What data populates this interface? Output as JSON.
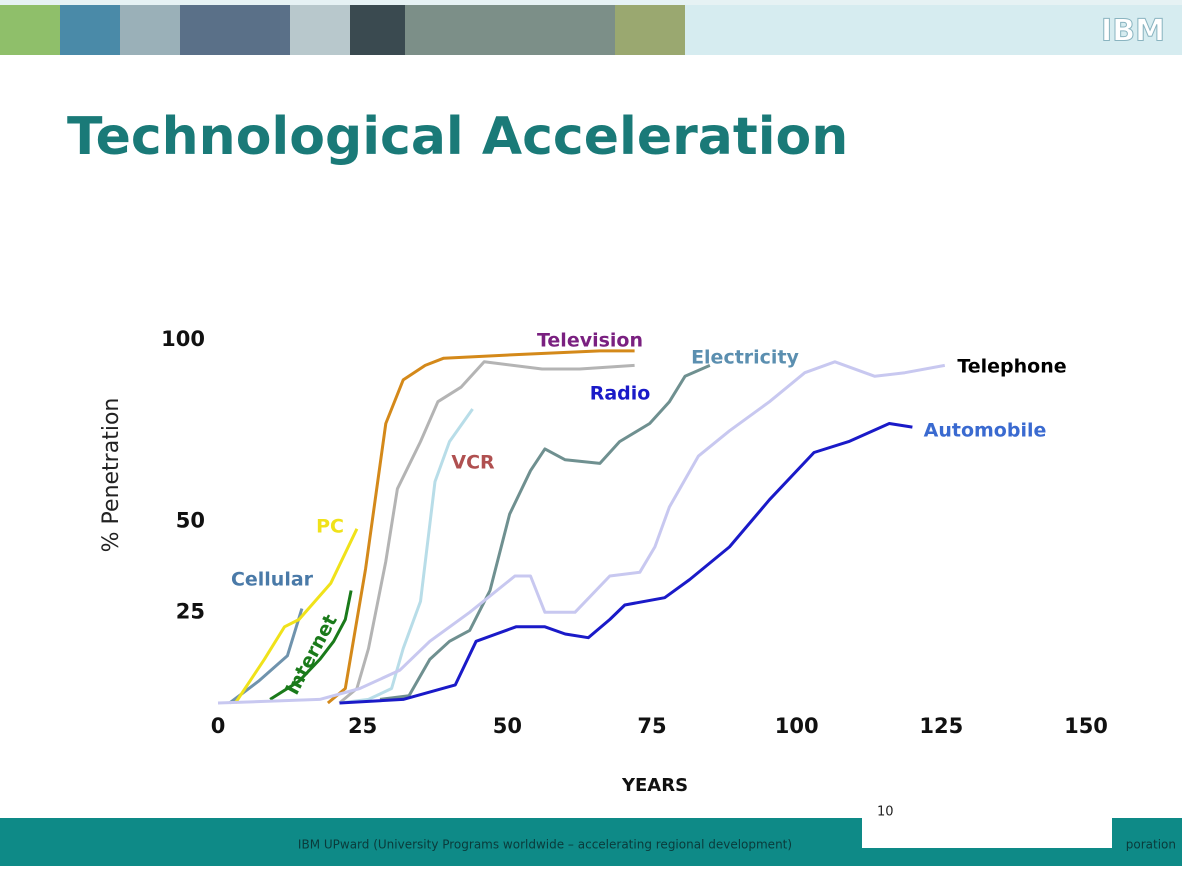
{
  "header": {
    "logo": "IBM"
  },
  "title": "Technological Acceleration",
  "chart_data": {
    "type": "line",
    "ylabel": "% Penetration",
    "xlabel": "YEARS",
    "xlim": [
      0,
      150
    ],
    "xticks": [
      0,
      25,
      50,
      75,
      100,
      125,
      150
    ],
    "ylim": [
      0,
      100
    ],
    "yticks": [
      25,
      50,
      100
    ],
    "grid": false,
    "series": [
      {
        "name": "Cellular",
        "color": "#6f93ad",
        "label_color": "#4a7aa8",
        "x": [
          2,
          7,
          12,
          14.5
        ],
        "values": [
          0,
          6,
          13,
          26
        ]
      },
      {
        "name": "PC",
        "color": "#f0e21a",
        "label_color": "#f0e21a",
        "x": [
          3,
          8,
          11.5,
          14,
          19.5,
          24
        ],
        "values": [
          0,
          12,
          21,
          23,
          33,
          48
        ]
      },
      {
        "name": "Internet",
        "color": "#1a7a1a",
        "label_color": "#1a7a1a",
        "x": [
          9,
          14,
          17.6,
          20,
          22,
          23
        ],
        "values": [
          1,
          6,
          12,
          17,
          23,
          31
        ]
      },
      {
        "name": "Television",
        "color": "#d4891a",
        "label_color": "#7a2080",
        "x": [
          19,
          22,
          25.5,
          29,
          32,
          35.8,
          39,
          52,
          66,
          72
        ],
        "values": [
          0,
          4,
          37,
          77,
          89,
          93,
          95,
          96,
          97,
          97
        ]
      },
      {
        "name": "Radio",
        "color": "#b4b4b4",
        "label_color": "#1a1ac8",
        "x": [
          21,
          24,
          26,
          29,
          31,
          35,
          38,
          42,
          46,
          56,
          62.5,
          72
        ],
        "values": [
          0,
          4,
          15,
          39,
          59,
          72,
          83,
          87,
          94,
          92,
          92,
          93
        ]
      },
      {
        "name": "VCR",
        "color": "#b8dde8",
        "label_color": "#b05050",
        "x": [
          21,
          26,
          30,
          32,
          35,
          37.5,
          40,
          44
        ],
        "values": [
          0,
          1,
          4,
          15,
          28,
          61,
          72,
          81
        ]
      },
      {
        "name": "Electricity",
        "color": "#6f9090",
        "label_color": "#5b8fb0",
        "x": [
          28,
          33,
          36.6,
          40,
          43.5,
          47,
          50.4,
          54,
          56.5,
          60,
          66,
          69.4,
          74.6,
          78,
          80.7,
          85
        ],
        "values": [
          1,
          2,
          12,
          17,
          20,
          31,
          52,
          64,
          70,
          67,
          66,
          72,
          77,
          83,
          90,
          93
        ]
      },
      {
        "name": "Telephone",
        "color": "#c8c8f0",
        "label_color": "#000000",
        "x": [
          0,
          17.6,
          24.5,
          31.4,
          36.6,
          43.5,
          51.3,
          54,
          56.5,
          61.7,
          67.7,
          72.9,
          75.5,
          78,
          83,
          88.4,
          95.3,
          101.4,
          106.6,
          113.5,
          118.7,
          125.6
        ],
        "values": [
          0,
          1,
          4,
          9,
          17,
          25,
          35,
          35,
          25,
          25,
          35,
          36,
          43,
          54,
          68,
          75,
          83,
          91,
          94,
          90,
          91,
          93
        ]
      },
      {
        "name": "Automobile",
        "color": "#1a1ac8",
        "label_color": "#3a6ad0",
        "x": [
          21,
          32,
          41,
          44.6,
          51.5,
          56.5,
          60,
          64,
          67.7,
          70.3,
          77.2,
          81.5,
          88.4,
          95.3,
          103,
          109,
          116,
          120
        ],
        "values": [
          0,
          1,
          5,
          17,
          21,
          21,
          19,
          18,
          23,
          27,
          29,
          34,
          43,
          56,
          69,
          72,
          77,
          76
        ]
      }
    ]
  },
  "footer": {
    "text": "IBM UPward (University Programs worldwide – accelerating regional development)",
    "page": "10",
    "corner": "poration"
  }
}
